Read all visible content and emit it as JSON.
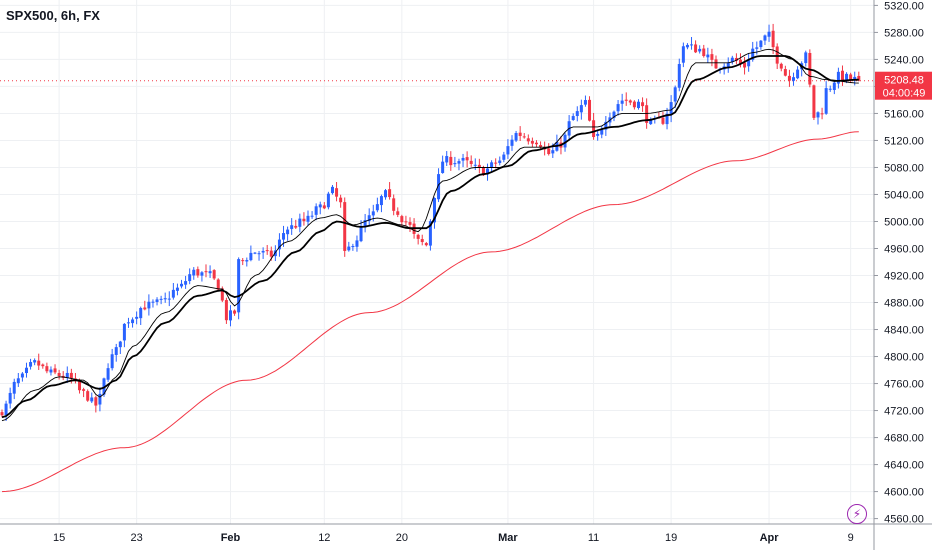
{
  "header": {
    "title": "SPX500, 6h, FX"
  },
  "badge": {
    "icon": "lightning-icon",
    "glyph": "⚡"
  },
  "price_label": {
    "price": "5208.48",
    "countdown": "04:00:49",
    "color": "#f23645"
  },
  "colors": {
    "up": "#2962ff",
    "down": "#f23645",
    "ma_fast": "#000000",
    "ma_slow": "#000000",
    "ma_long": "#f23645",
    "grid": "#eef0f3",
    "axis_text": "#131722",
    "accent": "#9c27b0"
  },
  "chart_data": {
    "type": "candlestick",
    "title": "SPX500, 6h, FX",
    "y_axis": {
      "position": "right",
      "ticks": [
        5320,
        5280,
        5240,
        5200,
        5160,
        5120,
        5080,
        5040,
        5000,
        4960,
        4920,
        4880,
        4840,
        4800,
        4760,
        4720,
        4680,
        4640,
        4600,
        4560
      ],
      "tick_labels": [
        "5320.00",
        "5280.00",
        "5240.00",
        "5200.00",
        "5160.00",
        "5120.00",
        "5080.00",
        "5040.00",
        "5000.00",
        "4960.00",
        "4920.00",
        "4880.00",
        "4840.00",
        "4800.00",
        "4760.00",
        "4720.00",
        "4680.00",
        "4640.00",
        "4600.00",
        "4560.00"
      ],
      "range": [
        4552,
        5328
      ]
    },
    "x_axis": {
      "tick_labels": [
        "15",
        "23",
        "Feb",
        "12",
        "20",
        "Mar",
        "11",
        "19",
        "Apr",
        "9"
      ],
      "tick_bars": [
        14,
        33,
        56,
        79,
        98,
        124,
        145,
        164,
        188,
        208
      ],
      "bold_labels": [
        "Feb",
        "Mar",
        "Apr"
      ]
    },
    "grid": true,
    "current_price": 5208.48,
    "series": [
      {
        "kind": "candles",
        "anchors": [
          [
            0,
            4720
          ],
          [
            4,
            4765
          ],
          [
            8,
            4790
          ],
          [
            12,
            4775
          ],
          [
            16,
            4770
          ],
          [
            20,
            4745
          ],
          [
            23,
            4728
          ],
          [
            27,
            4800
          ],
          [
            31,
            4855
          ],
          [
            35,
            4875
          ],
          [
            39,
            4880
          ],
          [
            43,
            4900
          ],
          [
            47,
            4925
          ],
          [
            51,
            4920
          ],
          [
            53,
            4905
          ],
          [
            55,
            4858
          ],
          [
            57,
            4865
          ],
          [
            58,
            4940
          ],
          [
            62,
            4955
          ],
          [
            66,
            4950
          ],
          [
            70,
            4990
          ],
          [
            74,
            5000
          ],
          [
            78,
            5020
          ],
          [
            81,
            5045
          ],
          [
            83,
            5025
          ],
          [
            84,
            4950
          ],
          [
            86,
            4970
          ],
          [
            90,
            5005
          ],
          [
            94,
            5040
          ],
          [
            96,
            5020
          ],
          [
            99,
            5000
          ],
          [
            102,
            4970
          ],
          [
            104,
            4965
          ],
          [
            106,
            5040
          ],
          [
            108,
            5090
          ],
          [
            112,
            5090
          ],
          [
            118,
            5075
          ],
          [
            122,
            5090
          ],
          [
            126,
            5130
          ],
          [
            131,
            5120
          ],
          [
            134,
            5100
          ],
          [
            137,
            5115
          ],
          [
            140,
            5155
          ],
          [
            143,
            5175
          ],
          [
            145,
            5120
          ],
          [
            149,
            5160
          ],
          [
            152,
            5180
          ],
          [
            156,
            5175
          ],
          [
            159,
            5145
          ],
          [
            162,
            5150
          ],
          [
            164,
            5175
          ],
          [
            167,
            5260
          ],
          [
            171,
            5255
          ],
          [
            175,
            5230
          ],
          [
            179,
            5240
          ],
          [
            182,
            5230
          ],
          [
            184,
            5255
          ],
          [
            188,
            5275
          ],
          [
            190,
            5240
          ],
          [
            193,
            5210
          ],
          [
            195,
            5230
          ],
          [
            197,
            5245
          ],
          [
            199,
            5155
          ],
          [
            201,
            5165
          ],
          [
            202,
            5195
          ],
          [
            205,
            5215
          ],
          [
            209,
            5210
          ],
          [
            210,
            5208.48
          ]
        ]
      },
      {
        "kind": "line",
        "name": "",
        "anchors": [
          [
            0,
            4705
          ],
          [
            8,
            4750
          ],
          [
            14,
            4770
          ],
          [
            20,
            4765
          ],
          [
            24,
            4740
          ],
          [
            28,
            4770
          ],
          [
            32,
            4815
          ],
          [
            40,
            4865
          ],
          [
            48,
            4905
          ],
          [
            54,
            4900
          ],
          [
            57,
            4875
          ],
          [
            62,
            4920
          ],
          [
            70,
            4970
          ],
          [
            78,
            5005
          ],
          [
            82,
            5010
          ],
          [
            86,
            4995
          ],
          [
            92,
            5005
          ],
          [
            98,
            4995
          ],
          [
            102,
            4985
          ],
          [
            108,
            5060
          ],
          [
            116,
            5080
          ],
          [
            122,
            5080
          ],
          [
            128,
            5110
          ],
          [
            134,
            5110
          ],
          [
            140,
            5140
          ],
          [
            146,
            5140
          ],
          [
            152,
            5160
          ],
          [
            158,
            5160
          ],
          [
            164,
            5165
          ],
          [
            170,
            5235
          ],
          [
            178,
            5235
          ],
          [
            184,
            5250
          ],
          [
            188,
            5255
          ],
          [
            194,
            5240
          ],
          [
            198,
            5215
          ],
          [
            202,
            5210
          ],
          [
            210,
            5205
          ]
        ]
      },
      {
        "kind": "line",
        "name": "",
        "anchors": [
          [
            0,
            4710
          ],
          [
            6,
            4735
          ],
          [
            12,
            4757
          ],
          [
            18,
            4765
          ],
          [
            24,
            4752
          ],
          [
            28,
            4765
          ],
          [
            32,
            4800
          ],
          [
            40,
            4850
          ],
          [
            48,
            4890
          ],
          [
            54,
            4898
          ],
          [
            57,
            4888
          ],
          [
            64,
            4912
          ],
          [
            72,
            4955
          ],
          [
            78,
            4985
          ],
          [
            82,
            5000
          ],
          [
            88,
            4992
          ],
          [
            94,
            4998
          ],
          [
            100,
            4990
          ],
          [
            104,
            4990
          ],
          [
            110,
            5045
          ],
          [
            118,
            5070
          ],
          [
            124,
            5082
          ],
          [
            130,
            5105
          ],
          [
            136,
            5112
          ],
          [
            142,
            5130
          ],
          [
            150,
            5140
          ],
          [
            158,
            5150
          ],
          [
            164,
            5158
          ],
          [
            170,
            5210
          ],
          [
            178,
            5228
          ],
          [
            186,
            5245
          ],
          [
            192,
            5245
          ],
          [
            198,
            5225
          ],
          [
            204,
            5208
          ],
          [
            210,
            5210
          ]
        ]
      },
      {
        "kind": "line",
        "name": "",
        "anchors": [
          [
            0,
            4600
          ],
          [
            30,
            4665
          ],
          [
            60,
            4765
          ],
          [
            90,
            4865
          ],
          [
            120,
            4955
          ],
          [
            150,
            5025
          ],
          [
            180,
            5090
          ],
          [
            200,
            5122
          ],
          [
            210,
            5133
          ]
        ]
      }
    ]
  }
}
